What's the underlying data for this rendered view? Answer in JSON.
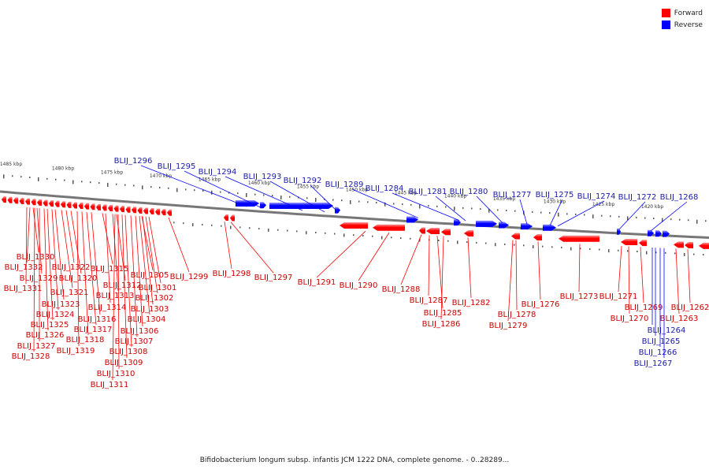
{
  "caption": "Bifidobacterium longum subsp. infantis JCM 1222 DNA, complete genome. - 0..28289...",
  "legend": [
    {
      "label": "Forward",
      "color": "#ff0000"
    },
    {
      "label": "Reverse",
      "color": "#0000ff"
    }
  ],
  "colors": {
    "forward": "#ff0000",
    "forward_label": "#cc0000",
    "reverse": "#0000ff",
    "reverse_label": "#1a1aaa",
    "axis": "#888888"
  },
  "ticks": [
    "1485 kbp",
    "1480 kbp",
    "1475 kbp",
    "1470 kbp",
    "1465 kbp",
    "1460 kbp",
    "1455 kbp",
    "1450 kbp",
    "1445 kbp",
    "1440 kbp",
    "1435 kbp",
    "1430 kbp",
    "1425 kbp",
    "1420 kbp"
  ],
  "reverse_labels": [
    "BLIJ_1296",
    "BLIJ_1295",
    "BLIJ_1294",
    "BLIJ_1293",
    "BLIJ_1292",
    "BLIJ_1289",
    "BLIJ_1284",
    "BLIJ_1281",
    "BLIJ_1280",
    "BLIJ_1277",
    "BLIJ_1275",
    "BLIJ_1274",
    "BLIJ_1272",
    "BLIJ_1268"
  ],
  "forward_labels": [
    "BLIJ_1299",
    "BLIJ_1298",
    "BLIJ_1297",
    "BLIJ_1291",
    "BLIJ_1290",
    "BLIJ_1288",
    "BLIJ_1287",
    "BLIJ_1285",
    "BLIJ_1286",
    "BLIJ_1282",
    "BLIJ_1278",
    "BLIJ_1279",
    "BLIJ_1276",
    "BLIJ_1273",
    "BLIJ_1271",
    "BLIJ_1270",
    "BLIJ_1269",
    "BLIJ_1263",
    "BLIJ_1262"
  ],
  "reverse_bottom_labels": [
    "BLIJ_1264",
    "BLIJ_1265",
    "BLIJ_1266",
    "BLIJ_1267"
  ],
  "cluster_labels": [
    "BLIJ_1330",
    "BLIJ_1332",
    "BLIJ_1329",
    "BLIJ_1331",
    "BLIJ_1322",
    "BLIJ_1321",
    "BLIJ_1320",
    "BLIJ_1323",
    "BLIJ_1324",
    "BLIJ_1325",
    "BLIJ_1326",
    "BLIJ_1327",
    "BLIJ_1328",
    "BLIJ_1315",
    "BLIJ_1316",
    "BLIJ_1317",
    "BLIJ_1318",
    "BLIJ_1319",
    "BLIJ_1312",
    "BLIJ_1313",
    "BLIJ_1314",
    "BLIJ_1305",
    "BLIJ_1301",
    "BLIJ_1302",
    "BLIJ_1303",
    "BLIJ_1304",
    "BLIJ_1306",
    "BLIJ_1307",
    "BLIJ_1308",
    "BLIJ_1309",
    "BLIJ_1310",
    "BLIJ_1311"
  ]
}
